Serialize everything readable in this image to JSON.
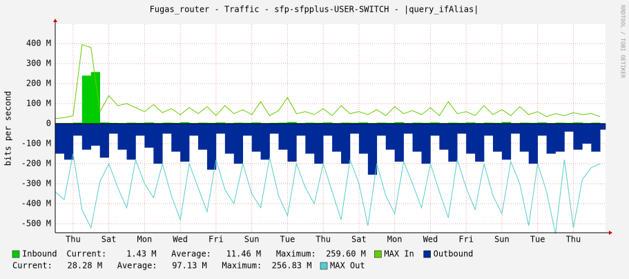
{
  "chart_data": {
    "type": "area",
    "title": "Fugas_router - Traffic - sfp-sfpplus-USER-SWITCH - |query_ifAlias|",
    "y_label": "bits per second",
    "watermark": "RRDTOOL / TOBI OETIKER",
    "xlim": [
      0,
      30.8
    ],
    "xticks": [
      {
        "value": 1,
        "label": "Thu"
      },
      {
        "value": 3,
        "label": "Sat"
      },
      {
        "value": 5,
        "label": "Mon"
      },
      {
        "value": 7,
        "label": "Wed"
      },
      {
        "value": 9,
        "label": "Fri"
      },
      {
        "value": 11,
        "label": "Sun"
      },
      {
        "value": 13,
        "label": "Tue"
      },
      {
        "value": 15,
        "label": "Thu"
      },
      {
        "value": 17,
        "label": "Sat"
      },
      {
        "value": 19,
        "label": "Mon"
      },
      {
        "value": 21,
        "label": "Wed"
      },
      {
        "value": 23,
        "label": "Fri"
      },
      {
        "value": 25,
        "label": "Sun"
      },
      {
        "value": 27,
        "label": "Tue"
      },
      {
        "value": 29,
        "label": "Thu"
      }
    ],
    "ylim": [
      -545,
      497
    ],
    "yticks": [
      {
        "value": 400,
        "label": "400 M"
      },
      {
        "value": 300,
        "label": "300 M"
      },
      {
        "value": 200,
        "label": "200 M"
      },
      {
        "value": 100,
        "label": "100 M"
      },
      0,
      {
        "value": -100,
        "label": "-100 M"
      },
      {
        "value": -200,
        "label": "-200 M"
      },
      {
        "value": -300,
        "label": "-300 M"
      },
      {
        "value": -400,
        "label": "-400 M"
      },
      {
        "value": -500,
        "label": "-500 M"
      }
    ],
    "grid": true,
    "x": [
      0,
      0.5,
      1,
      1.5,
      2,
      2.5,
      3,
      3.5,
      4,
      4.5,
      5,
      5.5,
      6,
      6.5,
      7,
      7.5,
      8,
      8.5,
      9,
      9.5,
      10,
      10.5,
      11,
      11.5,
      12,
      12.5,
      13,
      13.5,
      14,
      14.5,
      15,
      15.5,
      16,
      16.5,
      17,
      17.5,
      18,
      18.5,
      19,
      19.5,
      20,
      20.5,
      21,
      21.5,
      22,
      22.5,
      23,
      23.5,
      24,
      24.5,
      25,
      25.5,
      26,
      26.5,
      27,
      27.5,
      28,
      28.5,
      29,
      29.5,
      30,
      30.5
    ],
    "series": [
      {
        "name": "Inbound",
        "kind": "area",
        "color": "#00cc00",
        "stats": "Current:    1.43 M   Average:   11.46 M   Maximum:  259.60 M",
        "values": [
          3,
          3,
          5,
          240,
          258,
          6,
          4,
          3,
          5,
          4,
          6,
          3,
          5,
          4,
          7,
          3,
          5,
          4,
          6,
          3,
          5,
          4,
          6,
          3,
          4,
          5,
          8,
          3,
          5,
          4,
          6,
          3,
          5,
          4,
          6,
          3,
          5,
          4,
          7,
          3,
          5,
          4,
          6,
          3,
          5,
          4,
          6,
          3,
          5,
          4,
          8,
          3,
          5,
          4,
          6,
          3,
          5,
          4,
          6,
          3,
          5,
          2
        ]
      },
      {
        "name": "MAX In",
        "kind": "line",
        "color": "#66cc00",
        "values": [
          25,
          30,
          40,
          395,
          380,
          60,
          140,
          90,
          100,
          80,
          60,
          95,
          55,
          75,
          45,
          80,
          50,
          85,
          40,
          90,
          50,
          70,
          45,
          110,
          40,
          65,
          130,
          50,
          60,
          45,
          75,
          40,
          90,
          50,
          60,
          45,
          70,
          40,
          85,
          50,
          65,
          45,
          80,
          40,
          110,
          50,
          60,
          40,
          90,
          45,
          70,
          40,
          85,
          45,
          60,
          35,
          50,
          40,
          55,
          45,
          50,
          35
        ]
      },
      {
        "name": "Outbound",
        "kind": "area",
        "color": "#002a97",
        "stats": "Current:   28.28 M   Average:   97.13 M   Maximum:  256.83 M",
        "values": [
          -150,
          -180,
          -60,
          -130,
          -110,
          -170,
          -50,
          -130,
          -180,
          -60,
          -120,
          -200,
          -50,
          -140,
          -190,
          -60,
          -130,
          -230,
          -50,
          -150,
          -200,
          -60,
          -140,
          -180,
          -50,
          -130,
          -190,
          -60,
          -150,
          -200,
          -60,
          -140,
          -200,
          -50,
          -150,
          -255,
          -60,
          -130,
          -190,
          -50,
          -140,
          -200,
          -60,
          -130,
          -190,
          -50,
          -150,
          -190,
          -60,
          -140,
          -180,
          -50,
          -140,
          -200,
          -60,
          -150,
          -140,
          -40,
          -130,
          -100,
          -140,
          -30
        ]
      },
      {
        "name": "MAX Out",
        "kind": "line",
        "color": "#55cccc",
        "values": [
          -340,
          -380,
          -150,
          -430,
          -520,
          -290,
          -200,
          -320,
          -420,
          -180,
          -300,
          -370,
          -200,
          -360,
          -480,
          -200,
          -320,
          -440,
          -180,
          -330,
          -400,
          -200,
          -350,
          -420,
          -170,
          -360,
          -460,
          -200,
          -320,
          -400,
          -200,
          -340,
          -480,
          -180,
          -300,
          -510,
          -200,
          -360,
          -450,
          -190,
          -300,
          -420,
          -200,
          -340,
          -470,
          -180,
          -320,
          -430,
          -200,
          -360,
          -450,
          -190,
          -300,
          -510,
          -200,
          -340,
          -550,
          -180,
          -520,
          -280,
          -220,
          -200
        ]
      }
    ]
  }
}
